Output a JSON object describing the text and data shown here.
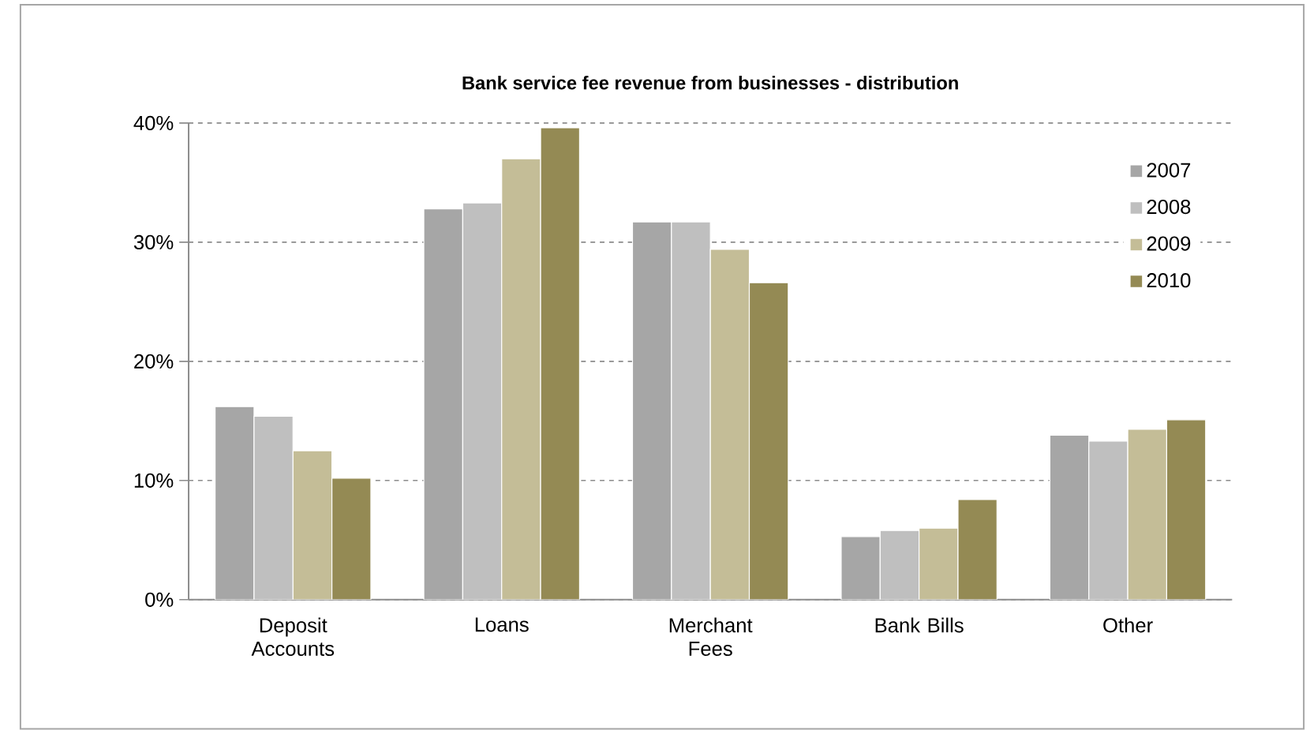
{
  "chart_data": {
    "type": "bar",
    "title": "Bank service fee revenue from businesses - distribution",
    "categories": [
      "Deposit Accounts",
      "Loans",
      "Merchant Fees",
      "Bank Bills",
      "Other"
    ],
    "series": [
      {
        "name": "2007",
        "color": "#a6a6a6",
        "values": [
          16.2,
          32.8,
          31.7,
          5.3,
          13.8
        ]
      },
      {
        "name": "2008",
        "color": "#bfbfbf",
        "values": [
          15.4,
          33.3,
          31.7,
          5.8,
          13.3
        ]
      },
      {
        "name": "2009",
        "color": "#c4bd97",
        "values": [
          12.5,
          37.0,
          29.4,
          6.0,
          14.3
        ]
      },
      {
        "name": "2010",
        "color": "#948a54",
        "values": [
          10.2,
          39.6,
          26.6,
          8.4,
          15.1
        ]
      }
    ],
    "ylim": [
      0,
      40
    ],
    "yticks": [
      {
        "value": 0,
        "label": "0%"
      },
      {
        "value": 10,
        "label": "10%"
      },
      {
        "value": 20,
        "label": "20%"
      },
      {
        "value": 30,
        "label": "30%"
      },
      {
        "value": 40,
        "label": "40%"
      }
    ],
    "grid": "y",
    "legend": "top right"
  }
}
